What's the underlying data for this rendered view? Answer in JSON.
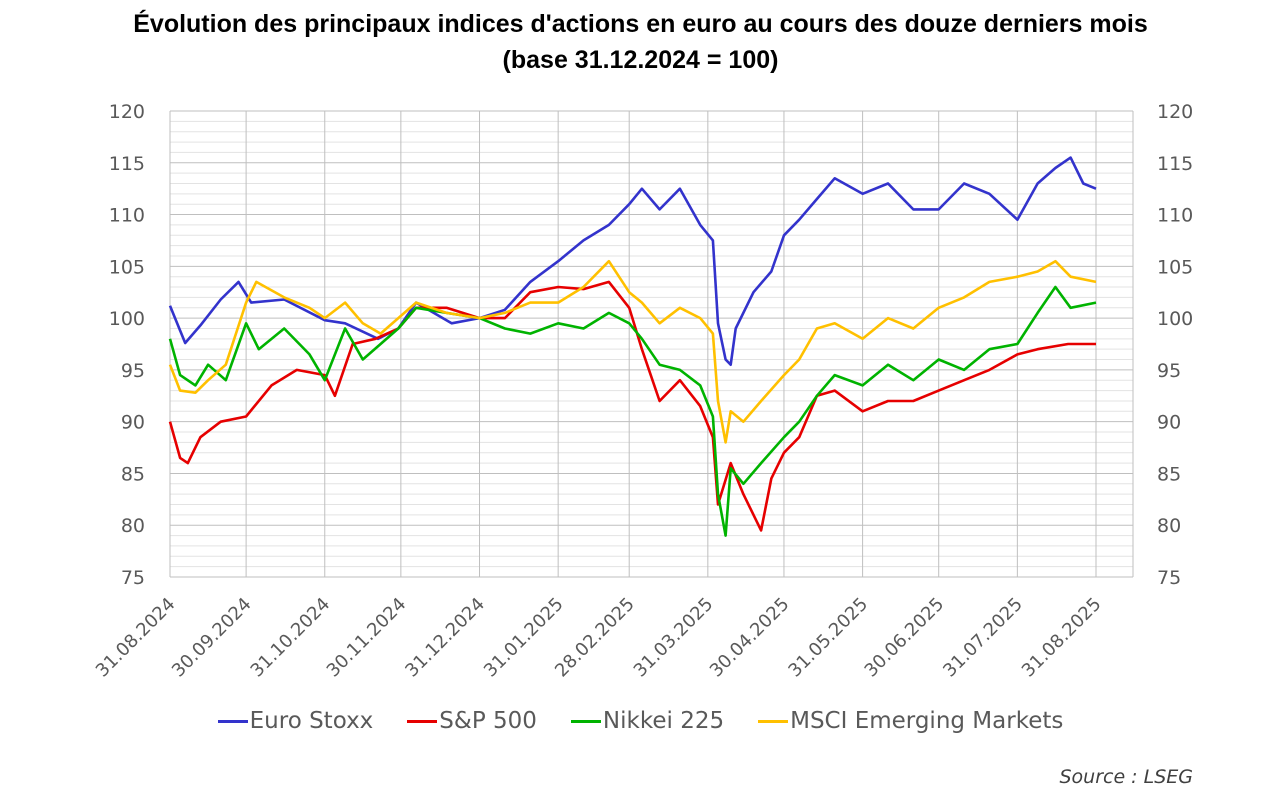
{
  "title": {
    "line1": "Évolution des principaux indices d'actions en euro au cours des douze derniers mois",
    "line2": "(base 31.12.2024 = 100)"
  },
  "source": "Source : LSEG",
  "chart_data": {
    "type": "line",
    "x_axis": {
      "start": "2024-08-31",
      "end": "2025-08-31",
      "tick_labels": [
        "31.08.2024",
        "30.09.2024",
        "31.10.2024",
        "30.11.2024",
        "31.12.2024",
        "31.01.2025",
        "28.02.2025",
        "31.03.2025",
        "30.04.2025",
        "31.05.2025",
        "30.06.2025",
        "31.07.2025",
        "31.08.2025"
      ],
      "tick_dates": [
        "2024-08-31",
        "2024-09-30",
        "2024-10-31",
        "2024-11-30",
        "2024-12-31",
        "2025-01-31",
        "2025-02-28",
        "2025-03-31",
        "2025-04-30",
        "2025-05-31",
        "2025-06-30",
        "2025-07-31",
        "2025-08-31"
      ]
    },
    "y_axis": {
      "min": 75,
      "max": 120,
      "major_step": 5,
      "minor_step": 1,
      "dual": true,
      "tick_labels": [
        "75",
        "80",
        "85",
        "90",
        "95",
        "100",
        "105",
        "110",
        "115",
        "120"
      ]
    },
    "grid": true,
    "legend_position": "bottom",
    "series": [
      {
        "name": "Euro Stoxx",
        "color": "#3333cc",
        "points": [
          [
            "2024-08-31",
            101.2
          ],
          [
            "2024-09-06",
            97.6
          ],
          [
            "2024-09-12",
            99.3
          ],
          [
            "2024-09-20",
            101.8
          ],
          [
            "2024-09-27",
            103.5
          ],
          [
            "2024-10-02",
            101.5
          ],
          [
            "2024-10-15",
            101.8
          ],
          [
            "2024-10-31",
            99.8
          ],
          [
            "2024-11-08",
            99.5
          ],
          [
            "2024-11-21",
            98.0
          ],
          [
            "2024-11-29",
            99.0
          ],
          [
            "2024-12-06",
            101.5
          ],
          [
            "2024-12-20",
            99.5
          ],
          [
            "2024-12-31",
            100.0
          ],
          [
            "2025-01-10",
            100.8
          ],
          [
            "2025-01-20",
            103.5
          ],
          [
            "2025-01-31",
            105.5
          ],
          [
            "2025-02-10",
            107.5
          ],
          [
            "2025-02-20",
            109.0
          ],
          [
            "2025-02-28",
            111.0
          ],
          [
            "2025-03-05",
            112.5
          ],
          [
            "2025-03-12",
            110.5
          ],
          [
            "2025-03-20",
            112.5
          ],
          [
            "2025-03-28",
            109.0
          ],
          [
            "2025-04-02",
            107.5
          ],
          [
            "2025-04-04",
            99.5
          ],
          [
            "2025-04-07",
            96.0
          ],
          [
            "2025-04-09",
            95.5
          ],
          [
            "2025-04-11",
            99.0
          ],
          [
            "2025-04-18",
            102.5
          ],
          [
            "2025-04-25",
            104.5
          ],
          [
            "2025-04-30",
            108.0
          ],
          [
            "2025-05-06",
            109.5
          ],
          [
            "2025-05-13",
            111.5
          ],
          [
            "2025-05-20",
            113.5
          ],
          [
            "2025-05-31",
            112.0
          ],
          [
            "2025-06-10",
            113.0
          ],
          [
            "2025-06-20",
            110.5
          ],
          [
            "2025-06-30",
            110.5
          ],
          [
            "2025-07-10",
            113.0
          ],
          [
            "2025-07-20",
            112.0
          ],
          [
            "2025-07-31",
            109.5
          ],
          [
            "2025-08-08",
            113.0
          ],
          [
            "2025-08-15",
            114.5
          ],
          [
            "2025-08-21",
            115.5
          ],
          [
            "2025-08-26",
            113.0
          ],
          [
            "2025-08-31",
            112.5
          ]
        ]
      },
      {
        "name": "S&P 500",
        "color": "#e60000",
        "points": [
          [
            "2024-08-31",
            90.0
          ],
          [
            "2024-09-04",
            86.5
          ],
          [
            "2024-09-07",
            86.0
          ],
          [
            "2024-09-12",
            88.5
          ],
          [
            "2024-09-20",
            90.0
          ],
          [
            "2024-09-30",
            90.5
          ],
          [
            "2024-10-10",
            93.5
          ],
          [
            "2024-10-20",
            95.0
          ],
          [
            "2024-10-31",
            94.5
          ],
          [
            "2024-11-04",
            92.5
          ],
          [
            "2024-11-11",
            97.5
          ],
          [
            "2024-11-20",
            98.0
          ],
          [
            "2024-11-29",
            99.0
          ],
          [
            "2024-12-06",
            101.0
          ],
          [
            "2024-12-18",
            101.0
          ],
          [
            "2024-12-31",
            100.0
          ],
          [
            "2025-01-10",
            100.0
          ],
          [
            "2025-01-20",
            102.5
          ],
          [
            "2025-01-31",
            103.0
          ],
          [
            "2025-02-10",
            102.8
          ],
          [
            "2025-02-20",
            103.5
          ],
          [
            "2025-02-28",
            101.0
          ],
          [
            "2025-03-05",
            97.0
          ],
          [
            "2025-03-12",
            92.0
          ],
          [
            "2025-03-20",
            94.0
          ],
          [
            "2025-03-28",
            91.5
          ],
          [
            "2025-04-02",
            88.5
          ],
          [
            "2025-04-04",
            82.0
          ],
          [
            "2025-04-09",
            86.0
          ],
          [
            "2025-04-14",
            83.0
          ],
          [
            "2025-04-21",
            79.5
          ],
          [
            "2025-04-25",
            84.5
          ],
          [
            "2025-04-30",
            87.0
          ],
          [
            "2025-05-06",
            88.5
          ],
          [
            "2025-05-13",
            92.5
          ],
          [
            "2025-05-20",
            93.0
          ],
          [
            "2025-05-31",
            91.0
          ],
          [
            "2025-06-10",
            92.0
          ],
          [
            "2025-06-20",
            92.0
          ],
          [
            "2025-06-30",
            93.0
          ],
          [
            "2025-07-10",
            94.0
          ],
          [
            "2025-07-20",
            95.0
          ],
          [
            "2025-07-31",
            96.5
          ],
          [
            "2025-08-08",
            97.0
          ],
          [
            "2025-08-20",
            97.5
          ],
          [
            "2025-08-31",
            97.5
          ]
        ]
      },
      {
        "name": "Nikkei 225",
        "color": "#00b300",
        "points": [
          [
            "2024-08-31",
            98.0
          ],
          [
            "2024-09-04",
            94.5
          ],
          [
            "2024-09-10",
            93.5
          ],
          [
            "2024-09-15",
            95.5
          ],
          [
            "2024-09-22",
            94.0
          ],
          [
            "2024-09-30",
            99.5
          ],
          [
            "2024-10-05",
            97.0
          ],
          [
            "2024-10-15",
            99.0
          ],
          [
            "2024-10-25",
            96.5
          ],
          [
            "2024-10-31",
            94.0
          ],
          [
            "2024-11-08",
            99.0
          ],
          [
            "2024-11-15",
            96.0
          ],
          [
            "2024-11-22",
            97.5
          ],
          [
            "2024-11-29",
            99.0
          ],
          [
            "2024-12-06",
            101.0
          ],
          [
            "2024-12-18",
            100.5
          ],
          [
            "2024-12-31",
            100.0
          ],
          [
            "2025-01-10",
            99.0
          ],
          [
            "2025-01-20",
            98.5
          ],
          [
            "2025-01-31",
            99.5
          ],
          [
            "2025-02-10",
            99.0
          ],
          [
            "2025-02-20",
            100.5
          ],
          [
            "2025-02-28",
            99.5
          ],
          [
            "2025-03-05",
            98.0
          ],
          [
            "2025-03-12",
            95.5
          ],
          [
            "2025-03-20",
            95.0
          ],
          [
            "2025-03-28",
            93.5
          ],
          [
            "2025-04-02",
            90.5
          ],
          [
            "2025-04-04",
            83.0
          ],
          [
            "2025-04-07",
            79.0
          ],
          [
            "2025-04-09",
            85.5
          ],
          [
            "2025-04-14",
            84.0
          ],
          [
            "2025-04-21",
            86.0
          ],
          [
            "2025-04-30",
            88.5
          ],
          [
            "2025-05-06",
            90.0
          ],
          [
            "2025-05-13",
            92.5
          ],
          [
            "2025-05-20",
            94.5
          ],
          [
            "2025-05-31",
            93.5
          ],
          [
            "2025-06-10",
            95.5
          ],
          [
            "2025-06-20",
            94.0
          ],
          [
            "2025-06-30",
            96.0
          ],
          [
            "2025-07-10",
            95.0
          ],
          [
            "2025-07-20",
            97.0
          ],
          [
            "2025-07-31",
            97.5
          ],
          [
            "2025-08-08",
            100.5
          ],
          [
            "2025-08-15",
            103.0
          ],
          [
            "2025-08-21",
            101.0
          ],
          [
            "2025-08-31",
            101.5
          ]
        ]
      },
      {
        "name": "MSCI Emerging Markets",
        "color": "#ffc000",
        "points": [
          [
            "2024-08-31",
            95.5
          ],
          [
            "2024-09-04",
            93.0
          ],
          [
            "2024-09-10",
            92.8
          ],
          [
            "2024-09-15",
            94.0
          ],
          [
            "2024-09-22",
            95.5
          ],
          [
            "2024-09-30",
            101.5
          ],
          [
            "2024-10-04",
            103.5
          ],
          [
            "2024-10-15",
            102.0
          ],
          [
            "2024-10-25",
            101.0
          ],
          [
            "2024-10-31",
            100.0
          ],
          [
            "2024-11-08",
            101.5
          ],
          [
            "2024-11-15",
            99.5
          ],
          [
            "2024-11-22",
            98.5
          ],
          [
            "2024-11-29",
            100.0
          ],
          [
            "2024-12-06",
            101.5
          ],
          [
            "2024-12-18",
            100.5
          ],
          [
            "2024-12-31",
            100.0
          ],
          [
            "2025-01-10",
            100.5
          ],
          [
            "2025-01-20",
            101.5
          ],
          [
            "2025-01-31",
            101.5
          ],
          [
            "2025-02-10",
            103.0
          ],
          [
            "2025-02-20",
            105.5
          ],
          [
            "2025-02-28",
            102.5
          ],
          [
            "2025-03-05",
            101.5
          ],
          [
            "2025-03-12",
            99.5
          ],
          [
            "2025-03-20",
            101.0
          ],
          [
            "2025-03-28",
            100.0
          ],
          [
            "2025-04-02",
            98.5
          ],
          [
            "2025-04-04",
            92.0
          ],
          [
            "2025-04-07",
            88.0
          ],
          [
            "2025-04-09",
            91.0
          ],
          [
            "2025-04-14",
            90.0
          ],
          [
            "2025-04-21",
            92.0
          ],
          [
            "2025-04-30",
            94.5
          ],
          [
            "2025-05-06",
            96.0
          ],
          [
            "2025-05-13",
            99.0
          ],
          [
            "2025-05-20",
            99.5
          ],
          [
            "2025-05-31",
            98.0
          ],
          [
            "2025-06-10",
            100.0
          ],
          [
            "2025-06-20",
            99.0
          ],
          [
            "2025-06-30",
            101.0
          ],
          [
            "2025-07-10",
            102.0
          ],
          [
            "2025-07-20",
            103.5
          ],
          [
            "2025-07-31",
            104.0
          ],
          [
            "2025-08-08",
            104.5
          ],
          [
            "2025-08-15",
            105.5
          ],
          [
            "2025-08-21",
            104.0
          ],
          [
            "2025-08-31",
            103.5
          ]
        ]
      }
    ]
  }
}
